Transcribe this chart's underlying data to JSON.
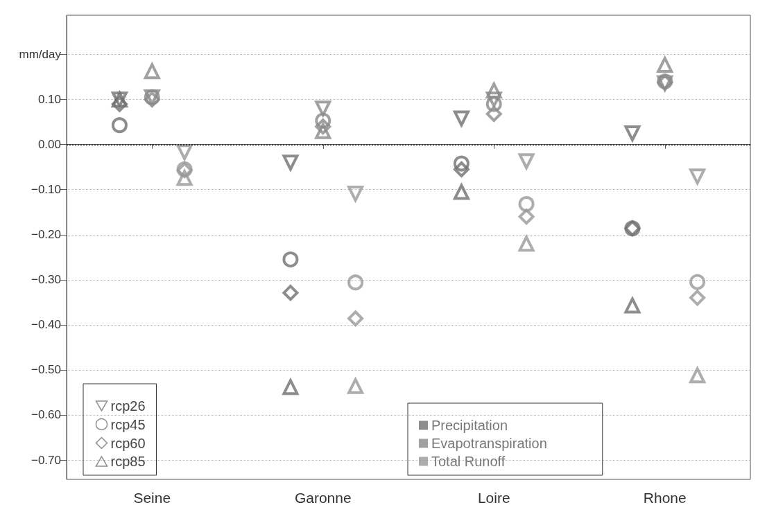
{
  "chart_data": {
    "type": "scatter",
    "categories": [
      "Seine",
      "Garonne",
      "Loire",
      "Rhone"
    ],
    "ylim": [
      -0.743,
      0.287
    ],
    "yticks": [
      {
        "value": -0.7,
        "label": "−0.70"
      },
      {
        "value": -0.6,
        "label": "−0.60"
      },
      {
        "value": -0.5,
        "label": "−0.50"
      },
      {
        "value": -0.4,
        "label": "−0.40"
      },
      {
        "value": -0.3,
        "label": "−0.30"
      },
      {
        "value": -0.2,
        "label": "−0.20"
      },
      {
        "value": -0.1,
        "label": "−0.10"
      },
      {
        "value": 0,
        "label": "0.00"
      },
      {
        "value": 0.1,
        "label": "0.10"
      },
      {
        "value": 0.2,
        "label": "mm/day"
      }
    ],
    "grid": "y",
    "legend": "bottom",
    "ref_lines": [
      {
        "axis": "y",
        "value": 0,
        "color": "#333333",
        "line_style": "dotted"
      }
    ],
    "series": [
      {
        "name": "rcp26",
        "marker": "triangle-down",
        "x": [
          "Seine",
          "Seine",
          "Seine",
          "Garonne",
          "Garonne",
          "Garonne",
          "Loire",
          "Loire",
          "Loire",
          "Rhone",
          "Rhone",
          "Rhone"
        ],
        "colors": [
          "#707070",
          "#8a8a8a",
          "#999999",
          "#707070",
          "#8a8a8a",
          "#999999",
          "#707070",
          "#8a8a8a",
          "#999999",
          "#707070",
          "#8a8a8a",
          "#999999"
        ],
        "values": [
          0.1,
          0.105,
          -0.017,
          -0.04,
          0.08,
          -0.109,
          0.058,
          0.1,
          -0.037,
          0.025,
          0.136,
          -0.071
        ]
      },
      {
        "name": "rcp45",
        "marker": "circle",
        "x": [
          "Seine",
          "Seine",
          "Seine",
          "Garonne",
          "Garonne",
          "Garonne",
          "Loire",
          "Loire",
          "Loire",
          "Rhone",
          "Rhone",
          "Rhone"
        ],
        "colors": [
          "#707070",
          "#8a8a8a",
          "#999999",
          "#707070",
          "#8a8a8a",
          "#999999",
          "#707070",
          "#8a8a8a",
          "#999999",
          "#707070",
          "#8a8a8a",
          "#999999"
        ],
        "values": [
          0.043,
          0.105,
          -0.055,
          -0.255,
          0.053,
          -0.306,
          -0.042,
          0.09,
          -0.132,
          -0.186,
          0.14,
          -0.305
        ]
      },
      {
        "name": "rcp60",
        "marker": "diamond",
        "x": [
          "Seine",
          "Seine",
          "Seine",
          "Garonne",
          "Garonne",
          "Garonne",
          "Loire",
          "Loire",
          "Loire",
          "Rhone",
          "Rhone",
          "Rhone"
        ],
        "colors": [
          "#707070",
          "#8a8a8a",
          "#999999",
          "#707070",
          "#8a8a8a",
          "#999999",
          "#707070",
          "#8a8a8a",
          "#999999",
          "#707070",
          "#8a8a8a",
          "#999999"
        ],
        "values": [
          0.09,
          0.1,
          -0.057,
          -0.329,
          0.04,
          -0.386,
          -0.055,
          0.068,
          -0.16,
          -0.186,
          0.138,
          -0.34
        ]
      },
      {
        "name": "rcp85",
        "marker": "triangle",
        "x": [
          "Seine",
          "Seine",
          "Seine",
          "Garonne",
          "Garonne",
          "Garonne",
          "Loire",
          "Loire",
          "Loire",
          "Rhone",
          "Rhone",
          "Rhone"
        ],
        "colors": [
          "#707070",
          "#8a8a8a",
          "#999999",
          "#707070",
          "#8a8a8a",
          "#999999",
          "#707070",
          "#8a8a8a",
          "#999999",
          "#707070",
          "#8a8a8a",
          "#999999"
        ],
        "values": [
          0.1,
          0.163,
          -0.074,
          -0.538,
          0.03,
          -0.536,
          -0.105,
          0.12,
          -0.22,
          -0.357,
          0.177,
          -0.512
        ]
      },
      {
        "name": "Precipitation",
        "color": "#707070",
        "marker": "square",
        "values": [
          null,
          null,
          null,
          null
        ]
      },
      {
        "name": "Evapotranspiration",
        "color": "#8a8a8a",
        "marker": "square",
        "values": [
          null,
          null,
          null,
          null
        ]
      },
      {
        "name": "Total Runoff",
        "color": "#999999",
        "marker": "square",
        "values": [
          null,
          null,
          null,
          null
        ]
      }
    ]
  }
}
